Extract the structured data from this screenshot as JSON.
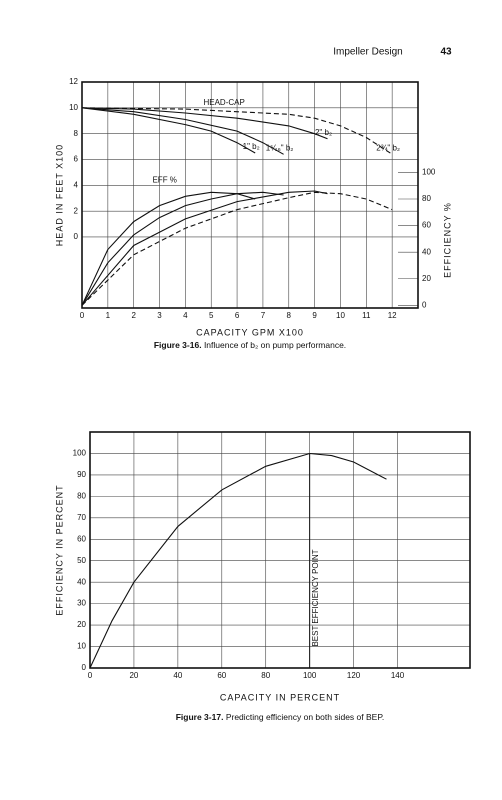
{
  "header": {
    "title": "Impeller Design",
    "page": "43"
  },
  "chart_data": [
    {
      "type": "line",
      "caption_label": "Figure 3-16.",
      "caption_text": "Influence of b₂ on pump performance.",
      "xlabel": "CAPACITY GPM X100",
      "ylabel": "HEAD IN FEET X100",
      "y2label": "EFFICIENCY %",
      "annotations": [
        "HEAD-CAP",
        "EFF %"
      ],
      "xlim": [
        0,
        13
      ],
      "xticks": [
        0,
        1,
        2,
        3,
        4,
        5,
        6,
        7,
        8,
        9,
        10,
        11,
        12
      ],
      "ylim": [
        -5.5,
        12
      ],
      "yticks": [
        0,
        2,
        4,
        6,
        8,
        10,
        12
      ],
      "y2lim": [
        -2,
        168
      ],
      "y2ticks": [
        0,
        20,
        40,
        60,
        80,
        100
      ],
      "grid": true,
      "color": "#111",
      "series": [
        {
          "name": "1\" b₂",
          "x": [
            0,
            2,
            4,
            5,
            6,
            6.7
          ],
          "values": [
            10,
            9.5,
            8.7,
            8.2,
            7.3,
            6.5
          ]
        },
        {
          "name": "1⁵⁄₁₆\" b₂",
          "x": [
            0,
            2,
            4,
            6,
            7,
            7.8
          ],
          "values": [
            10,
            9.7,
            9.1,
            8.2,
            7.3,
            6.4
          ]
        },
        {
          "name": "2\" b₂",
          "x": [
            0,
            2,
            4,
            6,
            8,
            9,
            9.5
          ],
          "values": [
            10,
            9.9,
            9.6,
            9.2,
            8.6,
            8,
            7.6
          ]
        },
        {
          "name": "2¾\" b₂",
          "dashed": true,
          "x": [
            0,
            4,
            8,
            9,
            10,
            11,
            12
          ],
          "values": [
            10,
            9.9,
            9.5,
            9.2,
            8.6,
            7.7,
            6.4
          ]
        },
        {
          "axis": "y2",
          "x": [
            0,
            1,
            2,
            3,
            4,
            5,
            6,
            6.7
          ],
          "values": [
            0,
            42,
            63,
            75,
            82,
            85,
            84,
            80
          ]
        },
        {
          "axis": "y2",
          "x": [
            0,
            1,
            2,
            3,
            4,
            5,
            6,
            7,
            7.8
          ],
          "values": [
            0,
            32,
            53,
            66,
            75,
            80,
            84,
            85,
            83
          ]
        },
        {
          "axis": "y2",
          "x": [
            0,
            2,
            4,
            6,
            8,
            9,
            9.5
          ],
          "values": [
            0,
            45,
            65,
            78,
            85,
            86,
            84
          ]
        },
        {
          "axis": "y2",
          "dashed": true,
          "x": [
            0,
            2,
            4,
            6,
            8,
            9,
            10,
            11,
            12
          ],
          "values": [
            0,
            38,
            58,
            72,
            81,
            85,
            84,
            80,
            72
          ]
        }
      ]
    },
    {
      "type": "line",
      "caption_label": "Figure 3-17.",
      "caption_text": "Predicting efficiency on both sides of BEP.",
      "xlabel": "CAPACITY IN PERCENT",
      "ylabel": "EFFICIENCY IN PERCENT",
      "annotations": [
        "BEST EFFICIENCY POINT"
      ],
      "xlim": [
        0,
        173
      ],
      "xticks": [
        0,
        20,
        40,
        60,
        80,
        100,
        120,
        140
      ],
      "ylim": [
        0,
        110
      ],
      "yticks": [
        0,
        10,
        20,
        30,
        40,
        50,
        60,
        70,
        80,
        90,
        100
      ],
      "grid": true,
      "color": "#111",
      "series": [
        {
          "x": [
            0,
            10,
            20,
            40,
            60,
            80,
            100,
            110,
            120,
            135
          ],
          "values": [
            0,
            22,
            40,
            66,
            83,
            94,
            100,
            99,
            96,
            88
          ]
        }
      ]
    }
  ]
}
